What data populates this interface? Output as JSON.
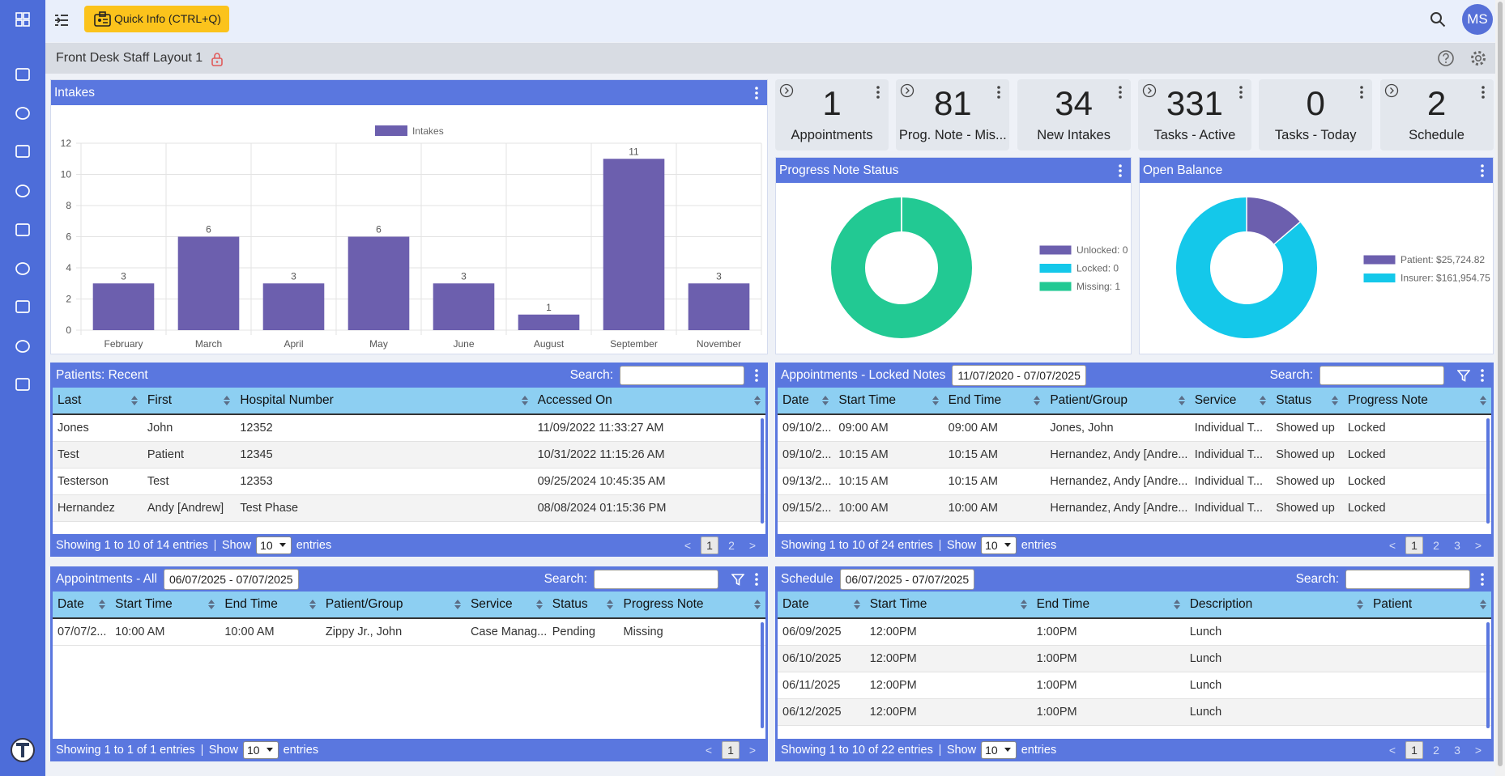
{
  "topbar": {
    "quick_info": "Quick Info (CTRL+Q)",
    "avatar": "MS"
  },
  "layout_title": "Front Desk Staff Layout 1",
  "kpis": [
    {
      "value": 1,
      "label": "Appointments"
    },
    {
      "value": 81,
      "label": "Prog. Note - Mis..."
    },
    {
      "value": 34,
      "label": "New Intakes"
    },
    {
      "value": 331,
      "label": "Tasks - Active"
    },
    {
      "value": 0,
      "label": "Tasks - Today"
    },
    {
      "value": 2,
      "label": "Schedule"
    }
  ],
  "chart_data": [
    {
      "type": "bar",
      "title": "Intakes",
      "categories": [
        "February",
        "March",
        "April",
        "May",
        "June",
        "August",
        "September",
        "November"
      ],
      "series": [
        {
          "name": "Intakes",
          "color": "#6c5fae",
          "values": [
            3,
            6,
            3,
            6,
            3,
            1,
            11,
            3
          ]
        }
      ],
      "ylim": [
        0,
        12
      ],
      "yticks": [
        0,
        2,
        4,
        6,
        8,
        10,
        12
      ],
      "grid": true
    },
    {
      "type": "pie",
      "title": "Progress Note Status",
      "categories": [
        "Unlocked: 0",
        "Locked: 0",
        "Missing: 1"
      ],
      "values": [
        0,
        0,
        1
      ],
      "colors": [
        "#6c5fae",
        "#14c8ea",
        "#22c993"
      ]
    },
    {
      "type": "pie",
      "title": "Open Balance",
      "categories": [
        "Patient: $25,724.82",
        "Insurer: $161,954.75"
      ],
      "values": [
        25724.82,
        161954.75
      ],
      "colors": [
        "#6c5fae",
        "#14c8ea"
      ]
    }
  ],
  "tables": [
    {
      "title": "Patients: Recent",
      "search_label": "Search:",
      "columns": [
        "Last",
        "First",
        "Hospital Number",
        "Accessed On"
      ],
      "rows": [
        [
          "Jones",
          "John",
          "12352",
          "11/09/2022 11:33:27 AM"
        ],
        [
          "Test",
          "Patient",
          "12345",
          "10/31/2022 11:15:26 AM"
        ],
        [
          "Testerson",
          "Test",
          "12353",
          "09/25/2024 10:45:35 AM"
        ],
        [
          "Hernandez",
          "Andy [Andrew]",
          "Test Phase",
          "08/08/2024 01:15:36 PM"
        ]
      ],
      "info": "Showing 1 to 10 of 14 entries",
      "show_label": "Show",
      "page_length": 10,
      "entries_label": "entries",
      "prev": "<",
      "pages": [
        1,
        2
      ],
      "next": ">"
    },
    {
      "title": "Appointments - Locked Notes",
      "date_range": "11/07/2020 - 07/07/2025",
      "search_label": "Search:",
      "columns": [
        "Date",
        "Start Time",
        "End Time",
        "Patient/Group",
        "Service",
        "Status",
        "Progress Note"
      ],
      "rows": [
        [
          "09/10/2...",
          "09:00 AM",
          "09:00 AM",
          "Jones, John",
          "Individual T...",
          "Showed up",
          "Locked"
        ],
        [
          "09/10/2...",
          "10:15 AM",
          "10:15 AM",
          "Hernandez, Andy [Andre...",
          "Individual T...",
          "Showed up",
          "Locked"
        ],
        [
          "09/13/2...",
          "10:15 AM",
          "10:15 AM",
          "Hernandez, Andy [Andre...",
          "Individual T...",
          "Showed up",
          "Locked"
        ],
        [
          "09/15/2...",
          "10:00 AM",
          "10:00 AM",
          "Hernandez, Andy [Andre...",
          "Individual T...",
          "Showed up",
          "Locked"
        ]
      ],
      "info": "Showing 1 to 10 of 24 entries",
      "show_label": "Show",
      "page_length": 10,
      "entries_label": "entries",
      "prev": "<",
      "pages": [
        1,
        2,
        3
      ],
      "next": ">"
    },
    {
      "title": "Appointments - All",
      "date_range": "06/07/2025 - 07/07/2025",
      "search_label": "Search:",
      "columns": [
        "Date",
        "Start Time",
        "End Time",
        "Patient/Group",
        "Service",
        "Status",
        "Progress Note"
      ],
      "rows": [
        [
          "07/07/2...",
          "10:00 AM",
          "10:00 AM",
          "Zippy Jr., John",
          "Case Manag...",
          "Pending",
          "Missing"
        ]
      ],
      "info": "Showing 1 to 1 of 1 entries",
      "show_label": "Show",
      "page_length": 10,
      "entries_label": "entries",
      "prev": "<",
      "pages": [
        1
      ],
      "next": ">"
    },
    {
      "title": "Schedule",
      "date_range": "06/07/2025 - 07/07/2025",
      "search_label": "Search:",
      "columns": [
        "Date",
        "Start Time",
        "End Time",
        "Description",
        "Patient"
      ],
      "rows": [
        [
          "06/09/2025",
          "12:00PM",
          "1:00PM",
          "Lunch"
        ],
        [
          "06/10/2025",
          "12:00PM",
          "1:00PM",
          "Lunch"
        ],
        [
          "06/11/2025",
          "12:00PM",
          "1:00PM",
          "Lunch"
        ],
        [
          "06/12/2025",
          "12:00PM",
          "1:00PM",
          "Lunch"
        ]
      ],
      "info": "Showing 1 to 10 of 22 entries",
      "show_label": "Show",
      "page_length": 10,
      "entries_label": "entries",
      "prev": "<",
      "pages": [
        1,
        2,
        3
      ],
      "next": ">"
    }
  ]
}
